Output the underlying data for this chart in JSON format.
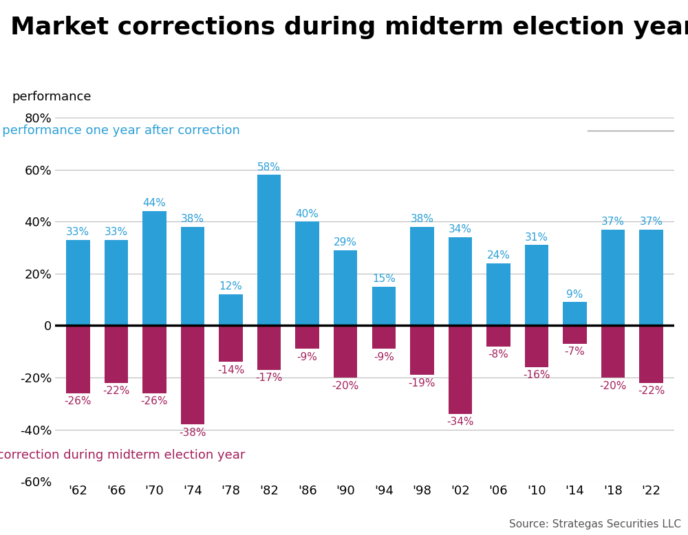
{
  "title": "Market corrections during midterm election years",
  "categories": [
    "'62",
    "'66",
    "'70",
    "'74",
    "'78",
    "'82",
    "'86",
    "'90",
    "'94",
    "'98",
    "'02",
    "'06",
    "'10",
    "'14",
    "'18",
    "'22"
  ],
  "positive_values": [
    33,
    33,
    44,
    38,
    12,
    58,
    40,
    29,
    15,
    38,
    34,
    24,
    31,
    9,
    37,
    37
  ],
  "negative_values": [
    -26,
    -22,
    -26,
    -38,
    -14,
    -17,
    -9,
    -20,
    -9,
    -19,
    -34,
    -8,
    -16,
    -7,
    -20,
    -22
  ],
  "bar_color_positive": "#2b9fd8",
  "bar_color_negative": "#a3215c",
  "ylim_min": -60,
  "ylim_max": 80,
  "yticks": [
    -60,
    -40,
    -20,
    0,
    20,
    40,
    60,
    80
  ],
  "ytick_labels": [
    "-60%",
    "-40%",
    "-20%",
    "0",
    "20%",
    "40%",
    "60%",
    "80%"
  ],
  "label_blue": "market performance one year after correction",
  "label_pink": "market correction during midterm election year",
  "performance_label": "performance",
  "source_text": "Source: Strategas Securities LLC",
  "background_color": "#ffffff",
  "title_fontsize": 26,
  "tick_fontsize": 13,
  "bar_label_fontsize": 11,
  "annotation_fontsize": 13,
  "perf_label_fontsize": 13,
  "source_fontsize": 11,
  "bar_width": 0.62
}
